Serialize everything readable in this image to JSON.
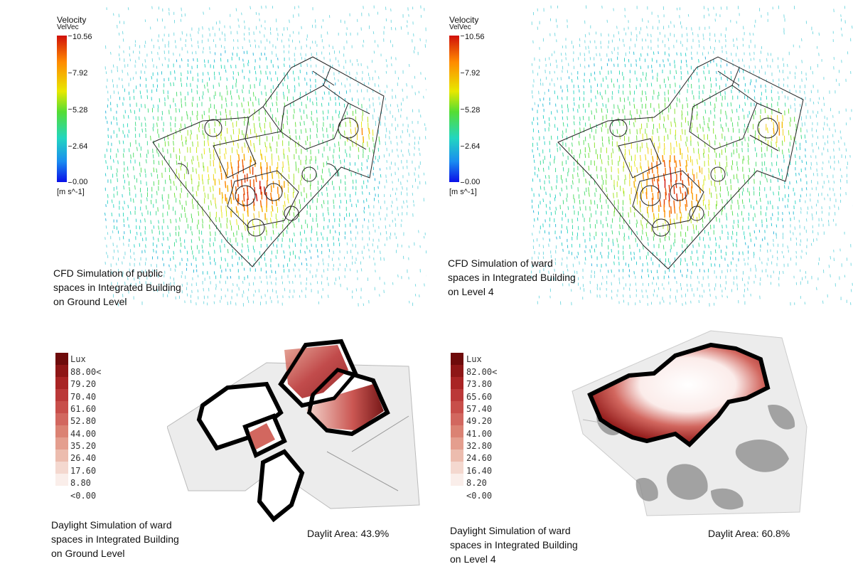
{
  "cfd_panels": [
    {
      "legend_title": "Velocity",
      "legend_subtitle": "VelVec",
      "ticks": [
        "10.56",
        "7.92",
        "5.28",
        "2.64",
        "0.00"
      ],
      "unit": "[m s^-1]",
      "caption_lines": [
        "CFD Simulation of public",
        "spaces in Integrated Building",
        "on Ground Level"
      ]
    },
    {
      "legend_title": "Velocity",
      "legend_subtitle": "VelVec",
      "ticks": [
        "10.56",
        "7.92",
        "5.28",
        "2.64",
        "0.00"
      ],
      "unit": "[m s^-1]",
      "caption_lines": [
        "CFD Simulation of ward",
        "spaces in Integrated Building",
        "on Level 4"
      ]
    }
  ],
  "daylight_panels": [
    {
      "legend_title": "Lux",
      "legend_values": [
        "88.00<",
        "79.20",
        "70.40",
        "61.60",
        "52.80",
        "44.00",
        "35.20",
        "26.40",
        "17.60",
        "8.80",
        "<0.00"
      ],
      "caption_lines": [
        "Daylight Simulation of ward",
        "spaces in Integrated Building",
        "on Ground Level"
      ],
      "daylit_area": "Daylit Area: 43.9%"
    },
    {
      "legend_title": "Lux",
      "legend_values": [
        "82.00<",
        "73.80",
        "65.60",
        "57.40",
        "49.20",
        "41.00",
        "32.80",
        "24.60",
        "16.40",
        "8.20",
        "<0.00"
      ],
      "caption_lines": [
        "Daylight Simulation of ward",
        "spaces in Integrated Building",
        "on Level 4"
      ],
      "daylit_area": "Daylit Area: 60.8%"
    }
  ],
  "colors": {
    "lux_scale": [
      "#6e0b0b",
      "#8e1616",
      "#a92424",
      "#bb3838",
      "#c84e4a",
      "#d2675f",
      "#db8273",
      "#e49e8e",
      "#ecbcae",
      "#f4d8cf",
      "#faeeea"
    ],
    "building_outline": "#000000",
    "site_ground": "#e9e9e9"
  }
}
